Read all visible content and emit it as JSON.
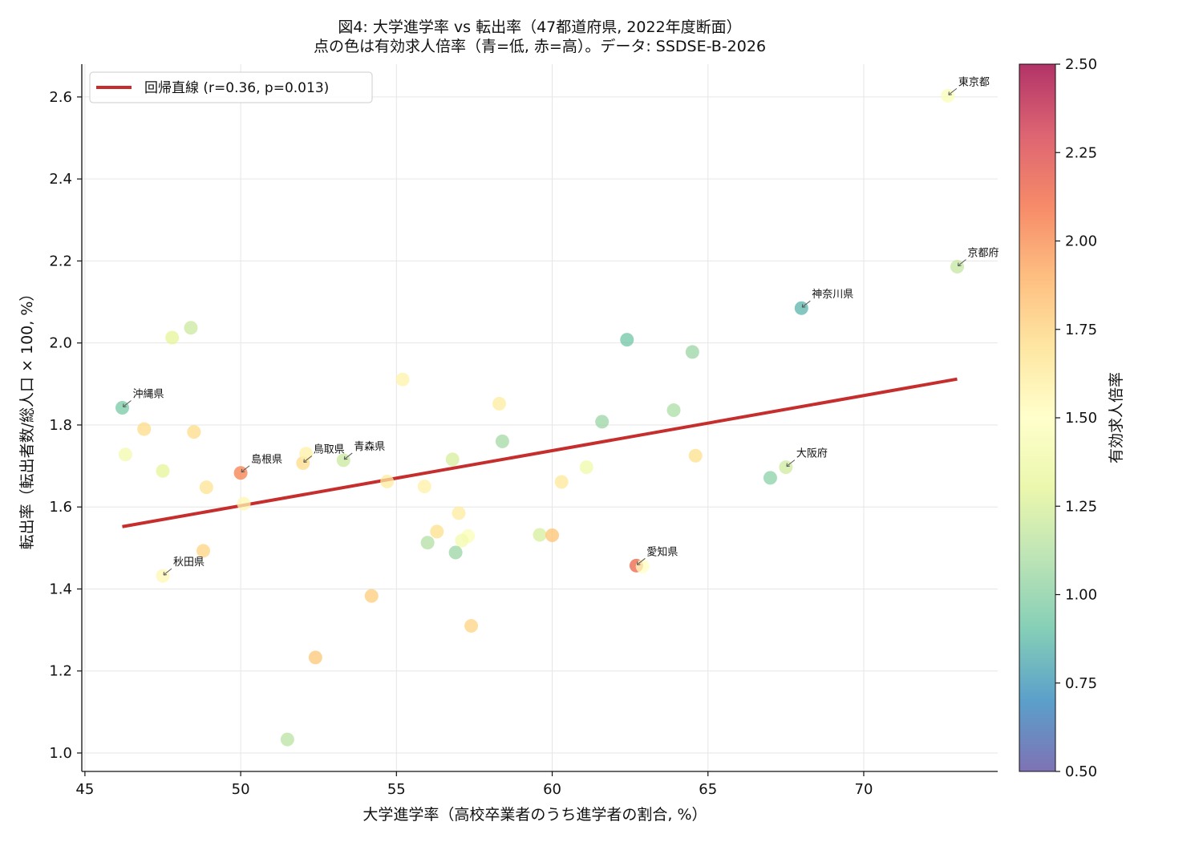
{
  "colors": {
    "regression": "#c62d2d",
    "grid": "#e6e6e6",
    "axis": "#111111",
    "colormap": [
      "#5e4fa2",
      "#3288bd",
      "#66c2a5",
      "#abdda4",
      "#e6f598",
      "#ffffbf",
      "#fee08b",
      "#fdae61",
      "#f46d43",
      "#d53e4f",
      "#9e0142"
    ]
  },
  "chart_data": {
    "type": "scatter",
    "title": "図4: 大学進学率 vs 転出率（47都道府県, 2022年度断面）",
    "subtitle": "点の色は有効求人倍率（青=低, 赤=高）。データ: SSDSE-B-2026",
    "xlabel": "大学進学率（高校卒業者のうち進学者の割合, %）",
    "ylabel": "転出率（転出者数/総人口 × 100, %）",
    "colorbar_label": "有効求人倍率",
    "xlim": [
      44.9,
      74.3
    ],
    "ylim": [
      0.955,
      2.68
    ],
    "clim": [
      0.5,
      2.5
    ],
    "colormap": "RdYlBu_r",
    "x_ticks": [
      45,
      50,
      55,
      60,
      65,
      70
    ],
    "x_tick_labels": [
      "45",
      "50",
      "55",
      "60",
      "65",
      "70"
    ],
    "y_ticks": [
      1.0,
      1.2,
      1.4,
      1.6,
      1.8,
      2.0,
      2.2,
      2.4,
      2.6
    ],
    "y_tick_labels": [
      "1.0",
      "1.2",
      "1.4",
      "1.6",
      "1.8",
      "2.0",
      "2.2",
      "2.4",
      "2.6"
    ],
    "cbar_ticks": [
      0.5,
      0.75,
      1.0,
      1.25,
      1.5,
      1.75,
      2.0,
      2.25,
      2.5
    ],
    "cbar_tick_labels": [
      "0.50",
      "0.75",
      "1.00",
      "1.25",
      "1.50",
      "1.75",
      "2.00",
      "2.25",
      "2.50"
    ],
    "grid": true,
    "legend_position": "top-left",
    "regression": {
      "label": "回帰直線 (r=0.36, p=0.013)",
      "x": [
        46.2,
        73.0
      ],
      "y": [
        1.552,
        1.912
      ]
    },
    "points": [
      {
        "x": 72.7,
        "y": 2.603,
        "c": 1.45,
        "label": "東京都"
      },
      {
        "x": 73.0,
        "y": 2.186,
        "c": 1.18,
        "label": "京都府"
      },
      {
        "x": 68.0,
        "y": 2.085,
        "c": 0.85,
        "label": "神奈川県"
      },
      {
        "x": 46.2,
        "y": 1.842,
        "c": 0.95,
        "label": "沖縄県"
      },
      {
        "x": 67.5,
        "y": 1.697,
        "c": 1.22,
        "label": "大阪府"
      },
      {
        "x": 50.0,
        "y": 1.683,
        "c": 2.05,
        "label": "島根県"
      },
      {
        "x": 52.0,
        "y": 1.707,
        "c": 1.72,
        "label": "鳥取県"
      },
      {
        "x": 53.3,
        "y": 1.714,
        "c": 1.2,
        "label": "青森県"
      },
      {
        "x": 62.7,
        "y": 1.457,
        "c": 2.15,
        "label": "愛知県"
      },
      {
        "x": 47.5,
        "y": 1.432,
        "c": 1.55,
        "label": "秋田県"
      },
      {
        "x": 62.9,
        "y": 1.455,
        "c": 1.5,
        "label": ""
      },
      {
        "x": 48.4,
        "y": 2.037,
        "c": 1.2,
        "label": ""
      },
      {
        "x": 47.8,
        "y": 2.013,
        "c": 1.3,
        "label": ""
      },
      {
        "x": 62.4,
        "y": 2.008,
        "c": 0.92,
        "label": ""
      },
      {
        "x": 64.5,
        "y": 1.978,
        "c": 1.05,
        "label": ""
      },
      {
        "x": 55.2,
        "y": 1.911,
        "c": 1.58,
        "label": ""
      },
      {
        "x": 58.3,
        "y": 1.852,
        "c": 1.62,
        "label": ""
      },
      {
        "x": 63.9,
        "y": 1.836,
        "c": 1.1,
        "label": ""
      },
      {
        "x": 61.6,
        "y": 1.808,
        "c": 1.05,
        "label": ""
      },
      {
        "x": 46.9,
        "y": 1.79,
        "c": 1.72,
        "label": ""
      },
      {
        "x": 48.5,
        "y": 1.783,
        "c": 1.72,
        "label": ""
      },
      {
        "x": 58.4,
        "y": 1.76,
        "c": 1.08,
        "label": ""
      },
      {
        "x": 52.1,
        "y": 1.73,
        "c": 1.6,
        "label": ""
      },
      {
        "x": 46.3,
        "y": 1.728,
        "c": 1.4,
        "label": ""
      },
      {
        "x": 64.6,
        "y": 1.725,
        "c": 1.7,
        "label": ""
      },
      {
        "x": 56.8,
        "y": 1.716,
        "c": 1.25,
        "label": ""
      },
      {
        "x": 61.1,
        "y": 1.697,
        "c": 1.38,
        "label": ""
      },
      {
        "x": 47.5,
        "y": 1.688,
        "c": 1.3,
        "label": ""
      },
      {
        "x": 67.0,
        "y": 1.671,
        "c": 1.0,
        "label": ""
      },
      {
        "x": 54.7,
        "y": 1.662,
        "c": 1.62,
        "label": ""
      },
      {
        "x": 60.3,
        "y": 1.661,
        "c": 1.65,
        "label": ""
      },
      {
        "x": 55.9,
        "y": 1.65,
        "c": 1.6,
        "label": ""
      },
      {
        "x": 48.9,
        "y": 1.648,
        "c": 1.68,
        "label": ""
      },
      {
        "x": 50.1,
        "y": 1.608,
        "c": 1.55,
        "label": ""
      },
      {
        "x": 57.0,
        "y": 1.585,
        "c": 1.62,
        "label": ""
      },
      {
        "x": 56.3,
        "y": 1.54,
        "c": 1.7,
        "label": ""
      },
      {
        "x": 59.6,
        "y": 1.532,
        "c": 1.25,
        "label": ""
      },
      {
        "x": 60.0,
        "y": 1.531,
        "c": 1.82,
        "label": ""
      },
      {
        "x": 57.3,
        "y": 1.529,
        "c": 1.45,
        "label": ""
      },
      {
        "x": 57.1,
        "y": 1.518,
        "c": 1.4,
        "label": ""
      },
      {
        "x": 56.0,
        "y": 1.513,
        "c": 1.12,
        "label": ""
      },
      {
        "x": 56.9,
        "y": 1.489,
        "c": 1.05,
        "label": ""
      },
      {
        "x": 48.8,
        "y": 1.493,
        "c": 1.75,
        "label": ""
      },
      {
        "x": 54.2,
        "y": 1.383,
        "c": 1.78,
        "label": ""
      },
      {
        "x": 57.4,
        "y": 1.31,
        "c": 1.75,
        "label": ""
      },
      {
        "x": 52.4,
        "y": 1.233,
        "c": 1.8,
        "label": ""
      },
      {
        "x": 51.5,
        "y": 1.033,
        "c": 1.15,
        "label": ""
      }
    ]
  }
}
